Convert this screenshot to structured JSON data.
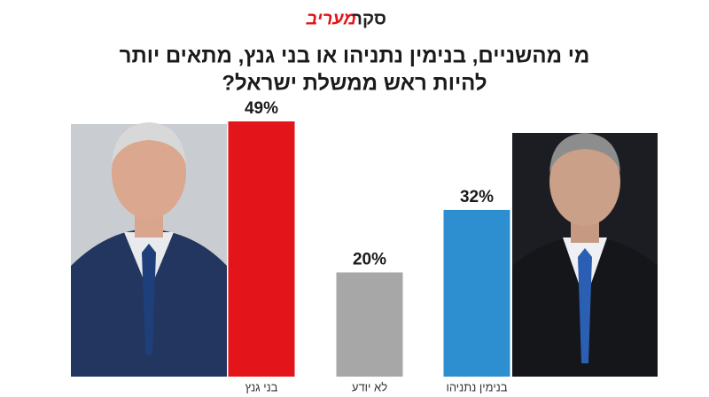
{
  "chart_data": {
    "type": "bar",
    "brand": "מעריב",
    "header": "סקר",
    "title": [
      "מי מהשניים, בנימין נתניהו או בני גנץ, מתאים יותר",
      "להיות ראש ממשלת ישראל?"
    ],
    "categories": [
      "בני גנץ",
      "לא יודע",
      "בנימין נתניהו"
    ],
    "values": [
      49,
      20,
      32
    ],
    "value_labels": [
      "49%",
      "20%",
      "32%"
    ],
    "colors": [
      "#e3151a",
      "#a7a7a7",
      "#2e8fd0"
    ]
  }
}
